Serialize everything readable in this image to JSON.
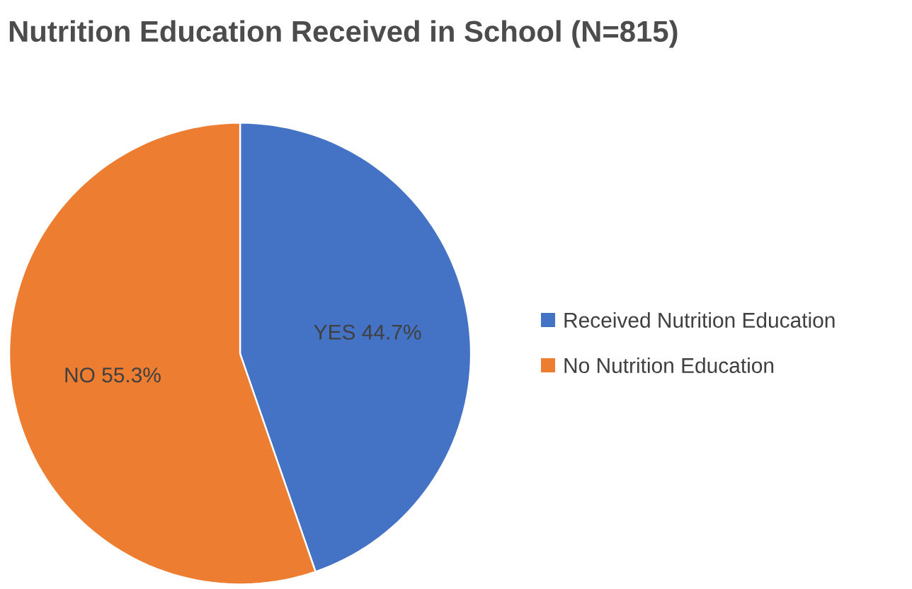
{
  "chart_data": {
    "type": "pie",
    "title": "Nutrition Education Received in School (N=815)",
    "categories": [
      "Received Nutrition Education",
      "No Nutrition Education"
    ],
    "values": [
      44.7,
      55.3
    ],
    "colors": [
      "#4472c4",
      "#ed7d31"
    ],
    "value_labels": [
      "YES 44.7%",
      "NO 55.3%"
    ],
    "legend": "right"
  }
}
